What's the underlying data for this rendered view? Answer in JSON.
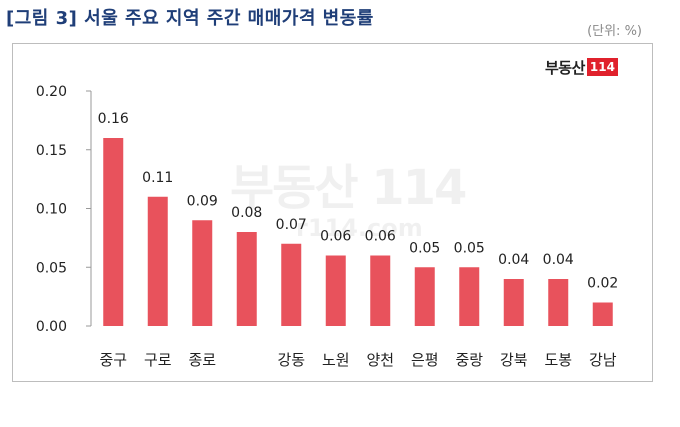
{
  "header": {
    "title": "[그림 3] 서울 주요 지역 주간 매매가격 변동률",
    "unit": "(단위: %)"
  },
  "logo": {
    "text": "부동산",
    "number": "114"
  },
  "watermark": {
    "text": "부동산",
    "number": "114",
    "url": "r114.com"
  },
  "colors": {
    "bar": "#e8525c",
    "title": "#1f3e78",
    "axis": "#999999"
  },
  "chart_data": {
    "type": "bar",
    "title": "[그림 3] 서울 주요 지역 주간 매매가격 변동률",
    "xlabel": "",
    "ylabel": "",
    "ylim": [
      0,
      0.2
    ],
    "yticks": [
      "0.00",
      "0.05",
      "0.10",
      "0.15",
      "0.20"
    ],
    "grid": false,
    "categories": [
      "중구",
      "구로",
      "종로",
      "",
      "강동",
      "노원",
      "양천",
      "은평",
      "중랑",
      "강북",
      "도봉",
      "강남"
    ],
    "values": [
      0.16,
      0.11,
      0.09,
      0.08,
      0.07,
      0.06,
      0.06,
      0.05,
      0.05,
      0.04,
      0.04,
      0.02
    ],
    "value_labels": [
      "0.16",
      "0.11",
      "0.09",
      "0.08",
      "0.07",
      "0.06",
      "0.06",
      "0.05",
      "0.05",
      "0.04",
      "0.04",
      "0.02"
    ]
  }
}
